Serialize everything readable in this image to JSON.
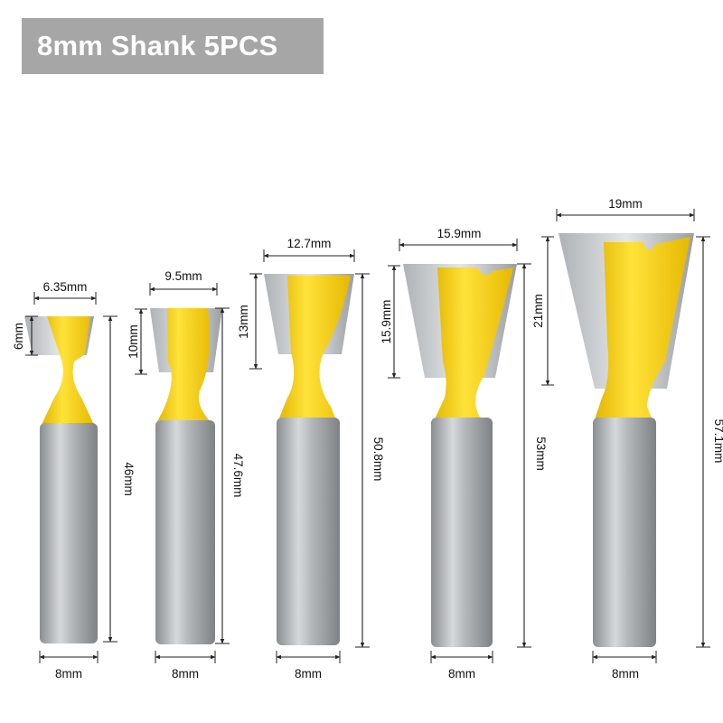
{
  "title": "8mm Shank 5PCS",
  "colors": {
    "banner": "#a6a6a6",
    "body": "#f2cc0f",
    "shank": "#9fa3a6",
    "dimension": "#222222"
  },
  "bits": [
    {
      "width": "6.35mm",
      "cut_height": "6mm",
      "total_length": "46mm",
      "shank": "8mm"
    },
    {
      "width": "9.5mm",
      "cut_height": "10mm",
      "total_length": "47.6mm",
      "shank": "8mm"
    },
    {
      "width": "12.7mm",
      "cut_height": "13mm",
      "total_length": "50.8mm",
      "shank": "8mm"
    },
    {
      "width": "15.9mm",
      "cut_height": "15.9mm",
      "total_length": "53mm",
      "shank": "8mm"
    },
    {
      "width": "19mm",
      "cut_height": "21mm",
      "total_length": "57.1mm",
      "shank": "8mm"
    }
  ]
}
